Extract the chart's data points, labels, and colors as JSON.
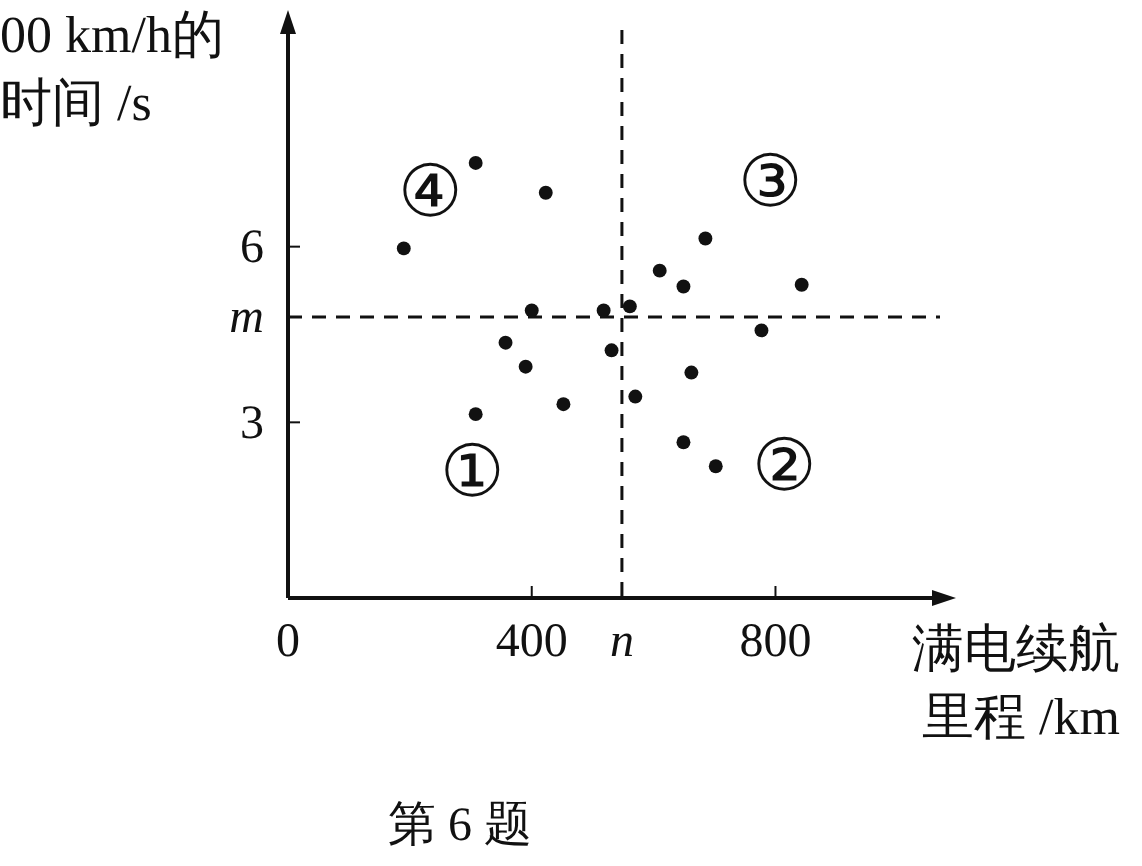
{
  "chart_data": {
    "type": "scatter",
    "xlabel": "满电续航里程 /km",
    "ylabel": "00 km/h的时间 /s",
    "color": "#111111",
    "marker": "circle",
    "grid": false,
    "x": [
      190,
      308,
      423,
      400,
      357,
      390,
      308,
      452,
      518,
      531,
      561,
      570,
      610,
      649,
      685,
      662,
      649,
      702,
      777,
      843
    ],
    "values": [
      5.97,
      7.43,
      6.92,
      4.91,
      4.36,
      3.95,
      3.14,
      3.31,
      4.91,
      4.23,
      4.98,
      3.44,
      5.59,
      5.32,
      6.14,
      3.85,
      2.66,
      2.25,
      4.57,
      5.35
    ],
    "xlim": [
      0,
      1070
    ],
    "ylim": [
      0,
      9.7
    ],
    "xticks": [
      0,
      400,
      {
        "value": 548,
        "label": "n"
      },
      800
    ],
    "yticks": [
      3,
      {
        "value": 4.8,
        "label": "m"
      },
      6
    ],
    "ref_lines": [
      {
        "axis": "x",
        "value": 548,
        "line_style": "dashed"
      },
      {
        "axis": "y",
        "value": 4.8,
        "line_style": "dashed"
      }
    ],
    "annotations": [
      "④",
      "③",
      "①",
      "②",
      "第 6 题"
    ]
  }
}
